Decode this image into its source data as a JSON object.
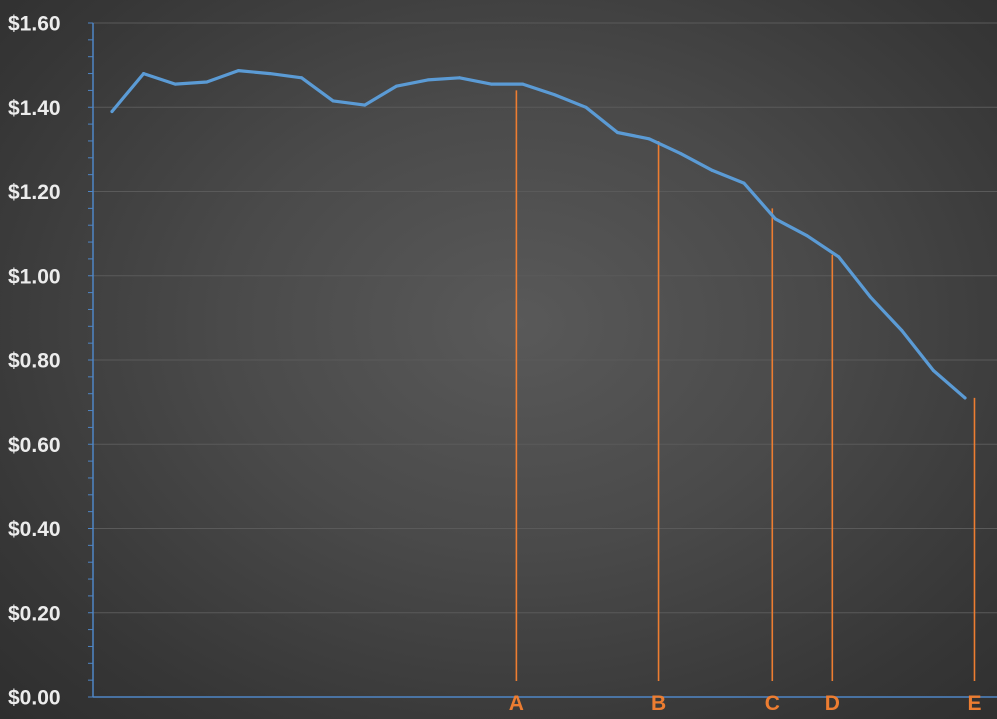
{
  "chart_data": {
    "type": "line",
    "title": "",
    "xlabel": "",
    "ylabel": "",
    "ylim": [
      0,
      1.6
    ],
    "y_ticks": [
      "$0.00",
      "$0.20",
      "$0.40",
      "$0.60",
      "$0.80",
      "$1.00",
      "$1.20",
      "$1.40",
      "$1.60"
    ],
    "y_tick_values": [
      0,
      0.2,
      0.4,
      0.6,
      0.8,
      1.0,
      1.2,
      1.4,
      1.6
    ],
    "grid": true,
    "legend": "none",
    "series": [
      {
        "color": "#5b9bd5",
        "values": [
          1.39,
          1.48,
          1.455,
          1.46,
          1.487,
          1.48,
          1.47,
          1.415,
          1.405,
          1.45,
          1.465,
          1.47,
          1.455,
          1.455,
          1.43,
          1.4,
          1.34,
          1.325,
          1.29,
          1.25,
          1.22,
          1.135,
          1.095,
          1.045,
          0.95,
          0.87,
          0.775,
          0.71
        ]
      }
    ],
    "markers": [
      {
        "label": "A",
        "index": 12.8,
        "value": 1.44
      },
      {
        "label": "B",
        "index": 17.3,
        "value": 1.32
      },
      {
        "label": "C",
        "index": 20.9,
        "value": 1.16
      },
      {
        "label": "D",
        "index": 22.8,
        "value": 1.05
      },
      {
        "label": "E",
        "index": 27.3,
        "value": 0.71
      }
    ],
    "marker_color": "#ed7d31"
  }
}
